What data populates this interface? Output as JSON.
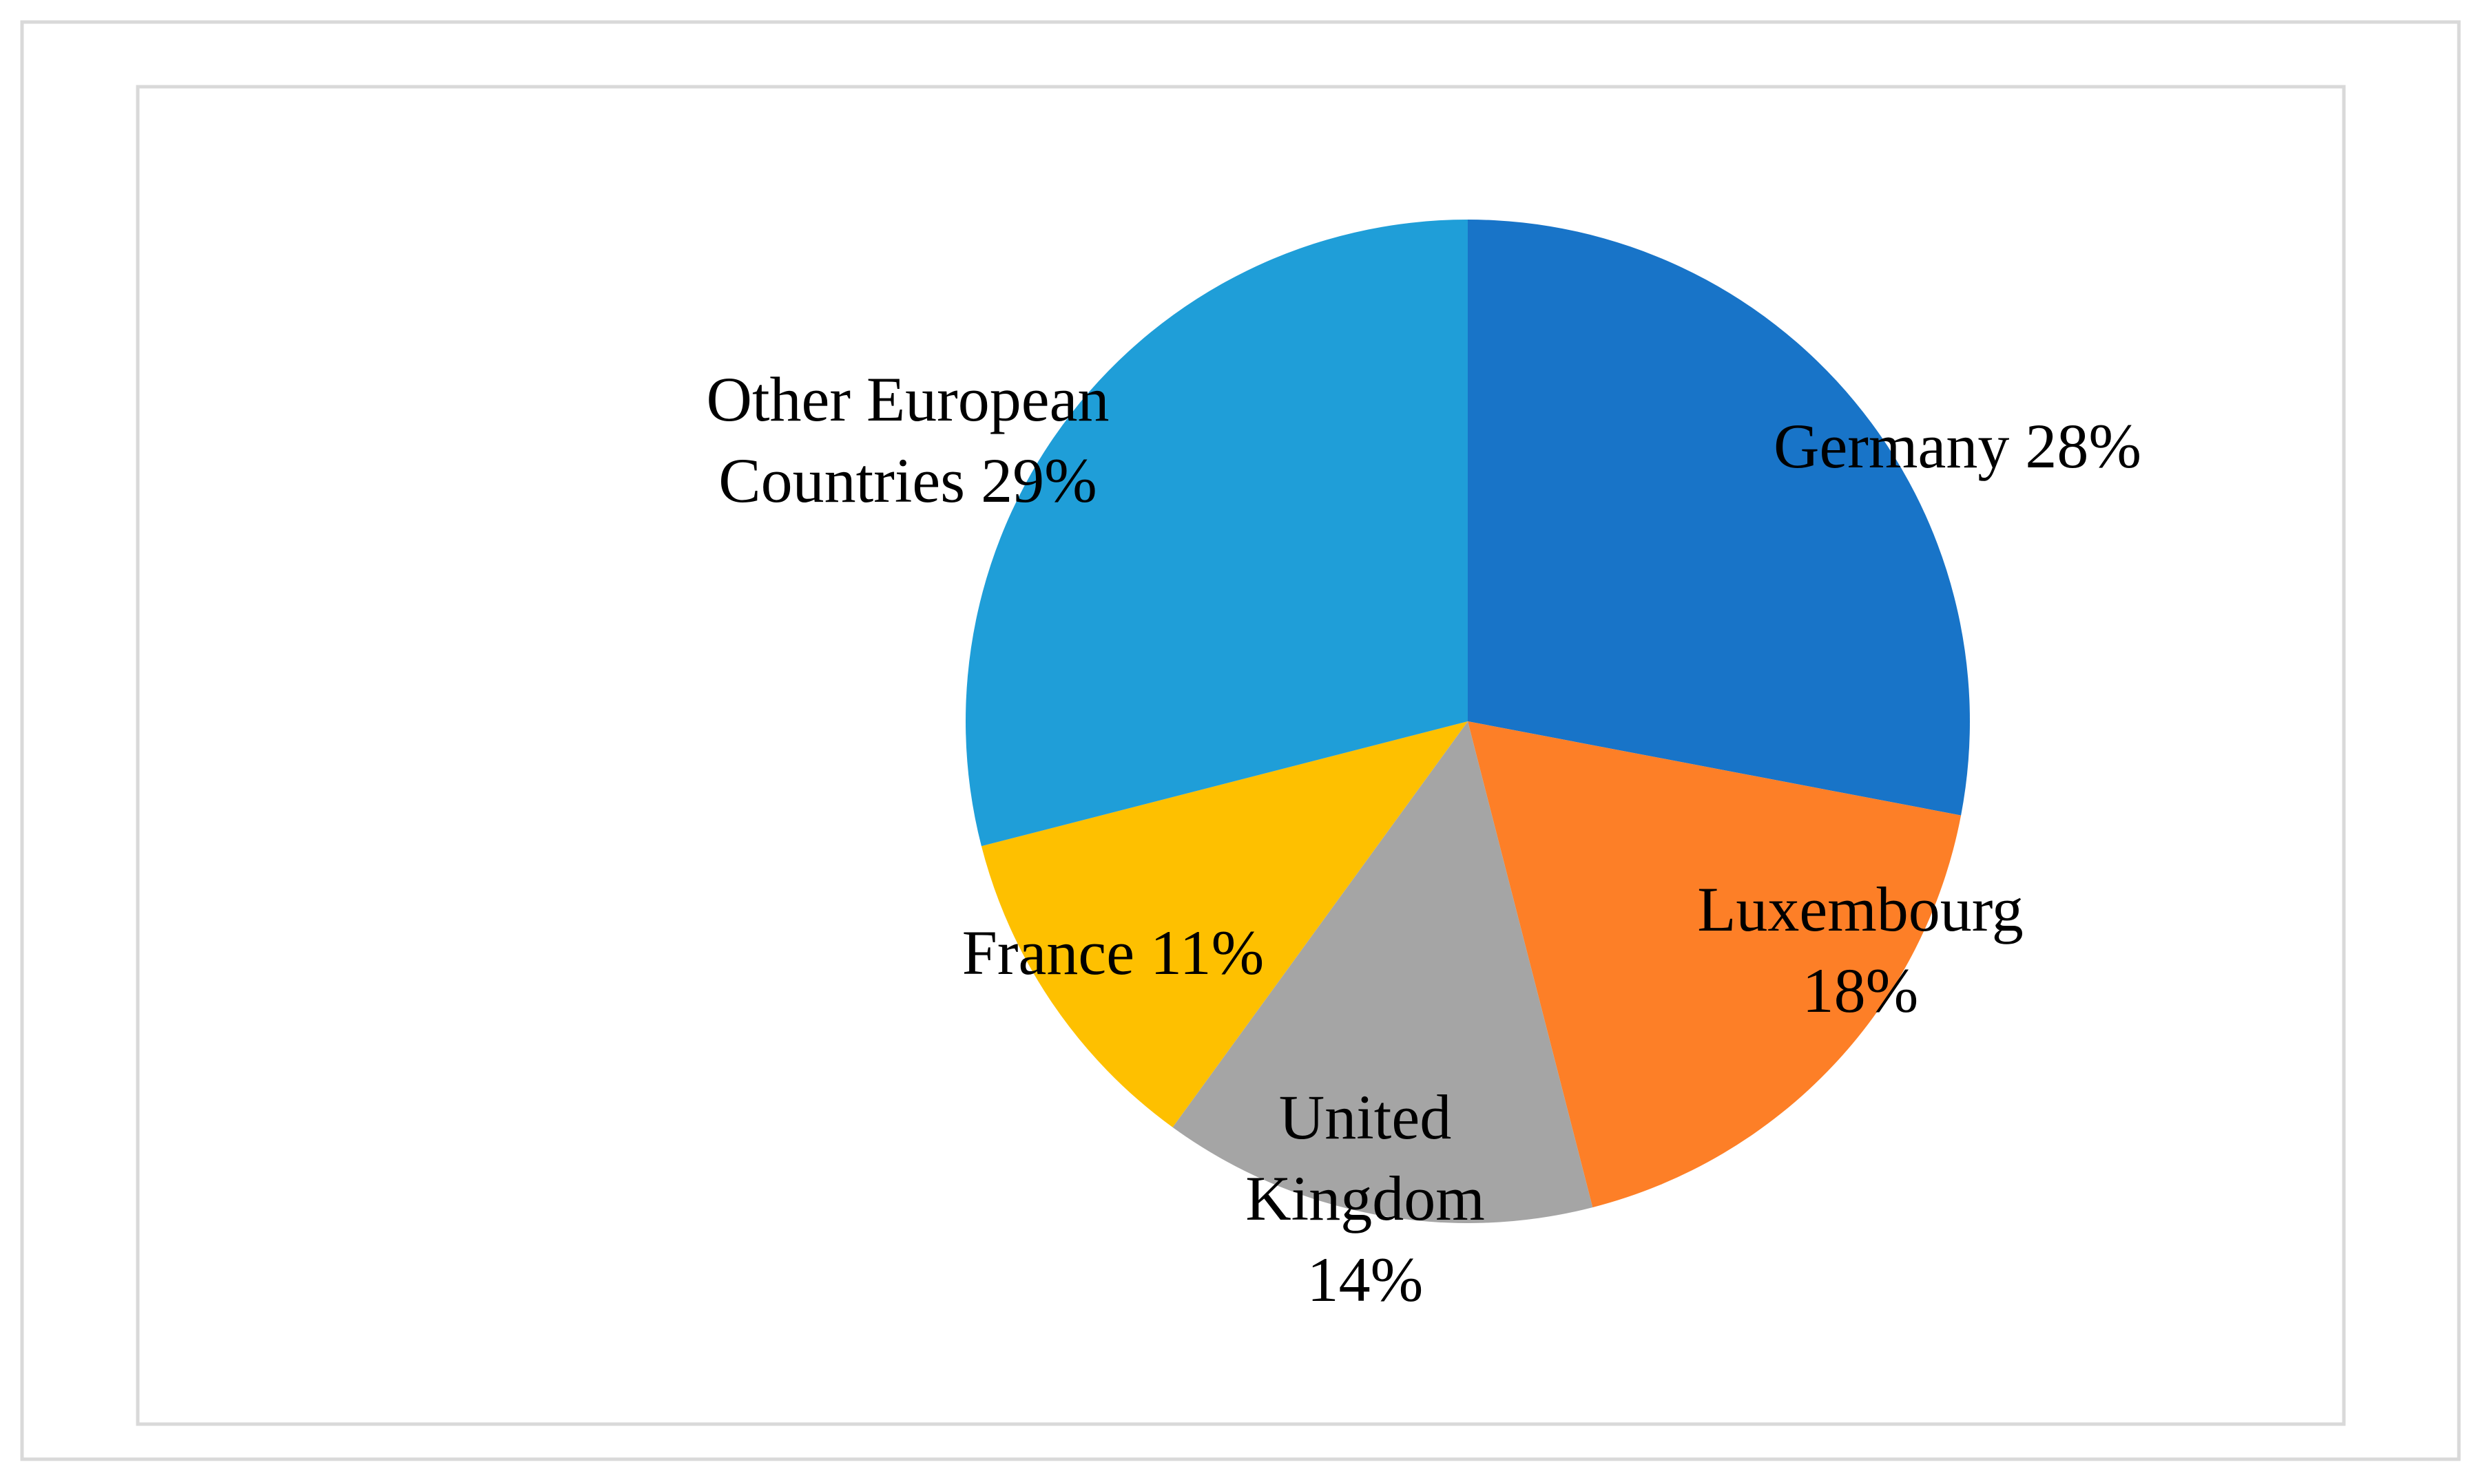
{
  "chart_data": {
    "type": "pie",
    "categories": [
      "Germany",
      "Luxembourg",
      "United Kingdom",
      "France",
      "Other European Countries"
    ],
    "values": [
      28,
      18,
      14,
      11,
      29
    ],
    "value_labels": [
      "28%",
      "18%",
      "14%",
      "11%",
      "29%"
    ],
    "colors": [
      "#1874c8",
      "#fd7f27",
      "#a5a5a5",
      "#fec000",
      "#1f9ed8"
    ]
  }
}
